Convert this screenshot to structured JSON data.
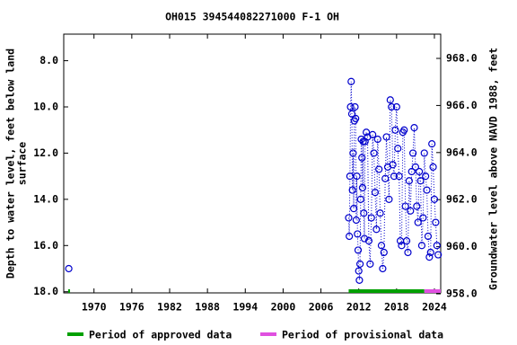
{
  "chart_data": {
    "type": "scatter",
    "title": "OH015 394544082271000 F-1 OH",
    "y_label": [
      "Depth to water level, feet below land",
      "surface"
    ],
    "y2_label": "Groundwater level above NAVD 1988, feet",
    "xlim": [
      1965.2,
      2025.0
    ],
    "xticks": [
      1970,
      1976,
      1982,
      1988,
      1994,
      2000,
      2006,
      2012,
      2018,
      2024
    ],
    "ylim": [
      18.05,
      6.85
    ],
    "yticks": [
      {
        "value": 8,
        "label": "8.0"
      },
      {
        "value": 10,
        "label": "10.0"
      },
      {
        "value": 12,
        "label": "12.0"
      },
      {
        "value": 14,
        "label": "14.0"
      },
      {
        "value": 16,
        "label": "16.0"
      },
      {
        "value": 18,
        "label": "18.0"
      }
    ],
    "y2lim": [
      958.04,
      969.03
    ],
    "y2ticks": [
      {
        "value": 958,
        "label": "958.0"
      },
      {
        "value": 960,
        "label": "960.0"
      },
      {
        "value": 962,
        "label": "962.0"
      },
      {
        "value": 964,
        "label": "964.0"
      },
      {
        "value": 966,
        "label": "966.0"
      },
      {
        "value": 968,
        "label": "968.0"
      }
    ],
    "color": "#0000cc",
    "x": [
      1966.0,
      2010.4,
      2010.5,
      2010.6,
      2010.7,
      2010.8,
      2010.9,
      2011.0,
      2011.1,
      2011.2,
      2011.3,
      2011.4,
      2011.5,
      2011.6,
      2011.7,
      2011.8,
      2011.9,
      2012.0,
      2012.1,
      2012.2,
      2012.3,
      2012.4,
      2012.5,
      2012.6,
      2012.7,
      2012.8,
      2012.9,
      2013.0,
      2013.2,
      2013.4,
      2013.6,
      2013.8,
      2014.0,
      2014.2,
      2014.4,
      2014.6,
      2014.8,
      2015.0,
      2015.2,
      2015.4,
      2015.6,
      2015.8,
      2016.0,
      2016.2,
      2016.4,
      2016.6,
      2016.8,
      2017.0,
      2017.2,
      2017.4,
      2017.6,
      2017.8,
      2018.0,
      2018.2,
      2018.4,
      2018.6,
      2018.8,
      2019.0,
      2019.2,
      2019.4,
      2019.6,
      2019.8,
      2020.0,
      2020.2,
      2020.4,
      2020.6,
      2020.8,
      2021.0,
      2021.2,
      2021.4,
      2021.6,
      2021.8,
      2022.0,
      2022.2,
      2022.4,
      2022.6,
      2022.8,
      2023.0,
      2023.2,
      2023.4,
      2023.6,
      2023.8,
      2024.0,
      2024.2,
      2024.4,
      2024.6
    ],
    "values": [
      17.0,
      14.8,
      15.6,
      13.0,
      10.0,
      8.9,
      10.3,
      13.6,
      12.0,
      14.4,
      10.6,
      10.0,
      10.5,
      14.9,
      13.0,
      15.5,
      16.2,
      17.1,
      17.5,
      16.8,
      14.0,
      11.4,
      12.2,
      13.5,
      11.5,
      14.6,
      15.7,
      11.5,
      11.1,
      11.3,
      15.8,
      16.8,
      14.8,
      11.2,
      12.0,
      13.7,
      15.3,
      11.4,
      12.7,
      14.6,
      16.0,
      17.0,
      16.3,
      13.1,
      11.3,
      12.6,
      14.0,
      9.7,
      10.0,
      12.5,
      13.0,
      11.0,
      10.0,
      11.8,
      13.0,
      15.8,
      16.0,
      11.1,
      11.0,
      14.3,
      15.8,
      16.3,
      13.2,
      14.5,
      12.8,
      12.0,
      10.9,
      12.6,
      14.3,
      15.0,
      12.8,
      13.2,
      16.0,
      14.8,
      12.0,
      13.0,
      13.6,
      15.6,
      16.5,
      16.3,
      11.6,
      12.6,
      14.0,
      15.0,
      16.0,
      16.4
    ],
    "periods": [
      {
        "name": "Period of approved data",
        "color": "#00a000",
        "ranges": [
          [
            1965.9,
            1966.2
          ],
          [
            2010.4,
            2022.4
          ]
        ]
      },
      {
        "name": "Period of provisional data",
        "color": "#e050e0",
        "ranges": [
          [
            2022.4,
            2025.0
          ]
        ]
      }
    ]
  }
}
